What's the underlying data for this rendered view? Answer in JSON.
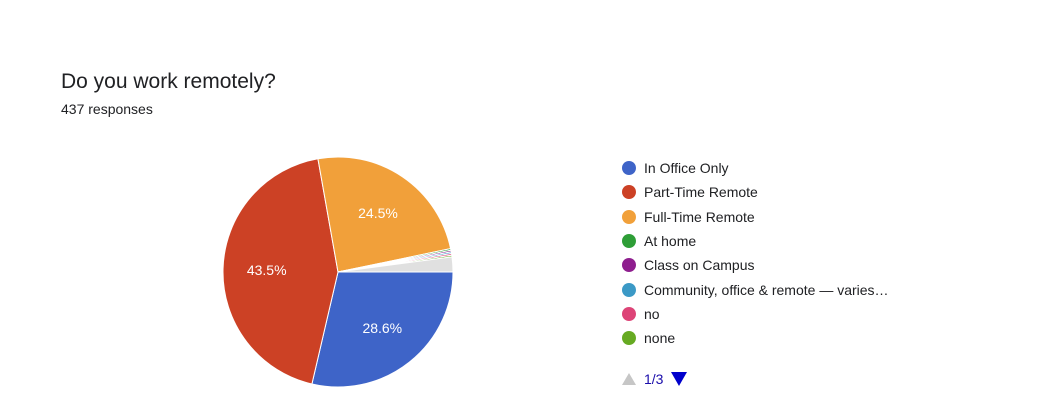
{
  "header": {
    "title": "Do you work remotely?",
    "responses": "437 responses"
  },
  "chart_data": {
    "type": "pie",
    "categories": [
      "In Office Only",
      "Part-Time Remote",
      "Full-Time Remote",
      "At home",
      "Class on Campus",
      "Community, office & remote — varies…",
      "no",
      "none"
    ],
    "values": [
      28.6,
      43.5,
      24.5,
      0.23,
      0.23,
      0.23,
      0.23,
      0.23
    ],
    "slice_labels": [
      "28.6%",
      "43.5%",
      "24.5%",
      "",
      "",
      "",
      "",
      ""
    ],
    "colors": [
      "#3e64c8",
      "#cc4125",
      "#f1a03a",
      "#2e9e37",
      "#8e1e8e",
      "#3b99c6",
      "#dd4477",
      "#66aa22"
    ],
    "other_slices_value": 2.1,
    "other_slices_color": "#e0e0e0"
  },
  "pager": {
    "label": "1/3",
    "prev_icon": "triangle-up-icon",
    "next_icon": "triangle-down-icon"
  }
}
